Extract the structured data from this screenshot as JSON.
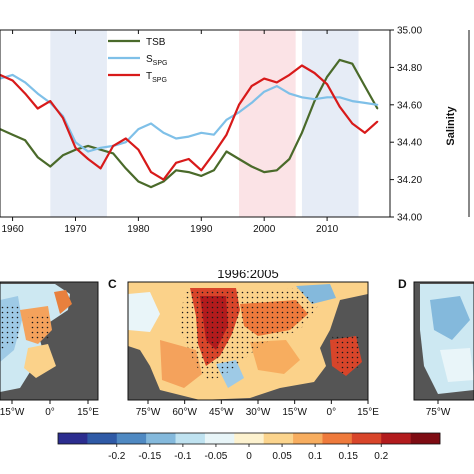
{
  "chart_data": [
    {
      "type": "line",
      "xlim": [
        1958,
        2020
      ],
      "x_ticks": [
        1960,
        1970,
        1980,
        1990,
        2000,
        2010
      ],
      "y_right_label": "Salinity",
      "y_right_lim": [
        34.0,
        35.0
      ],
      "y_right_ticks": [
        "34.00",
        "34.20",
        "34.40",
        "34.60",
        "34.80",
        "35.00"
      ],
      "shaded_periods": [
        {
          "start": 1966,
          "end": 1975,
          "color": "#e6ecf6"
        },
        {
          "start": 1996,
          "end": 2005,
          "color": "#fbe3e6"
        },
        {
          "start": 2006,
          "end": 2015,
          "color": "#e6ecf6"
        }
      ],
      "legend_position": "top-center",
      "series": [
        {
          "name": "TSB",
          "label_main": "TSB",
          "label_sub": "",
          "color": "#4a6a2a",
          "x": [
            1958,
            1960,
            1962,
            1964,
            1966,
            1968,
            1970,
            1972,
            1974,
            1976,
            1978,
            1980,
            1982,
            1984,
            1986,
            1988,
            1990,
            1992,
            1994,
            1996,
            1998,
            2000,
            2002,
            2004,
            2006,
            2008,
            2010,
            2012,
            2014,
            2016,
            2018
          ],
          "values": [
            34.47,
            34.44,
            34.41,
            34.32,
            34.27,
            34.33,
            34.36,
            34.38,
            34.36,
            34.34,
            34.26,
            34.19,
            34.16,
            34.19,
            34.25,
            34.24,
            34.22,
            34.25,
            34.35,
            34.31,
            34.27,
            34.24,
            34.25,
            34.31,
            34.45,
            34.62,
            34.75,
            34.84,
            34.82,
            34.7,
            34.58
          ]
        },
        {
          "name": "SSPG",
          "label_main": "S",
          "label_sub": "SPG",
          "color": "#7fc0e8",
          "x": [
            1958,
            1960,
            1962,
            1964,
            1966,
            1968,
            1970,
            1972,
            1974,
            1976,
            1978,
            1980,
            1982,
            1984,
            1986,
            1988,
            1990,
            1992,
            1994,
            1996,
            1998,
            2000,
            2002,
            2004,
            2006,
            2008,
            2010,
            2012,
            2014,
            2016,
            2018
          ],
          "values": [
            34.74,
            34.76,
            34.72,
            34.66,
            34.61,
            34.54,
            34.4,
            34.35,
            34.37,
            34.38,
            34.4,
            34.47,
            34.5,
            34.45,
            34.42,
            34.43,
            34.45,
            34.44,
            34.52,
            34.56,
            34.61,
            34.67,
            34.7,
            34.66,
            34.64,
            34.63,
            34.64,
            34.64,
            34.62,
            34.61,
            34.6
          ]
        },
        {
          "name": "TSPG",
          "label_main": "T",
          "label_sub": "SPG",
          "color": "#d81a1a",
          "x": [
            1958,
            1960,
            1962,
            1964,
            1966,
            1968,
            1970,
            1972,
            1974,
            1976,
            1978,
            1980,
            1982,
            1984,
            1986,
            1988,
            1990,
            1992,
            1994,
            1996,
            1998,
            2000,
            2002,
            2004,
            2006,
            2008,
            2010,
            2012,
            2014,
            2016,
            2018
          ],
          "values": [
            34.76,
            34.73,
            34.66,
            34.58,
            34.62,
            34.53,
            34.37,
            34.31,
            34.26,
            34.38,
            34.42,
            34.36,
            34.24,
            34.2,
            34.29,
            34.31,
            34.25,
            34.34,
            34.44,
            34.6,
            34.7,
            34.74,
            34.72,
            34.76,
            34.81,
            34.77,
            34.71,
            34.59,
            34.5,
            34.45,
            34.51
          ]
        }
      ]
    },
    {
      "type": "heatmap",
      "panels": [
        {
          "letter": "",
          "title": "",
          "x_ticks": [
            "15°W",
            "0°",
            "15°E"
          ]
        },
        {
          "letter": "C",
          "title": "1996:2005",
          "x_ticks": [
            "75°W",
            "60°W",
            "45°W",
            "30°W",
            "15°W",
            "0°",
            "15°E"
          ]
        },
        {
          "letter": "D",
          "title": "",
          "x_ticks": [
            "75°W"
          ]
        }
      ],
      "colorbar": {
        "ticks": [
          "-0.2",
          "-0.15",
          "-0.1",
          "-0.05",
          "0",
          "0.05",
          "0.1",
          "0.15",
          "0.2"
        ],
        "colors": [
          "#2c2d8f",
          "#2f5aa6",
          "#4f89c2",
          "#84b9dc",
          "#bfe2f0",
          "#e8f5f8",
          "#fdf2cf",
          "#fbd48d",
          "#f7ad5f",
          "#ee7a3c",
          "#d8452a",
          "#b21b1d",
          "#7e0c13"
        ]
      },
      "stippling": "significance dots"
    }
  ]
}
